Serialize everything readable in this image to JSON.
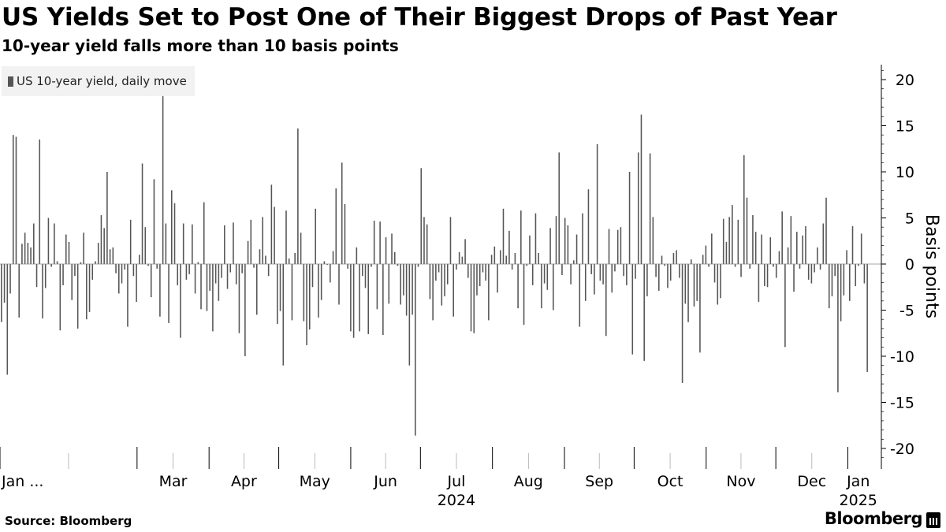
{
  "header": {
    "title": "US Yields Set to Post One of Their Biggest Drops of Past Year",
    "subtitle": "10-year yield falls more than 10 basis points"
  },
  "footer": {
    "source": "Source: Bloomberg",
    "brand": "Bloomberg"
  },
  "chart_data": {
    "type": "bar",
    "legend": {
      "label": "US 10-year yield, daily move",
      "placement": "top-left"
    },
    "ylabel": "Basis points",
    "ylim": [
      -22,
      22
    ],
    "yticks": [
      20,
      15,
      10,
      5,
      0,
      -5,
      -10,
      -15,
      -20
    ],
    "ytick_labels": [
      "20",
      "15",
      "10",
      "5",
      "0",
      "-5",
      "-10",
      "-15",
      "-20"
    ],
    "y_axis_side": "right",
    "grid": false,
    "color": "#555555",
    "xlim": [
      "2024-01-02",
      "2025-01-10"
    ],
    "x_tick_labels": [
      {
        "date": "2024-01-02",
        "label": "Jan ..."
      },
      {
        "date": "2024-03-01",
        "label": "Mar"
      },
      {
        "date": "2024-04-01",
        "label": "Apr"
      },
      {
        "date": "2024-05-01",
        "label": "May"
      },
      {
        "date": "2024-06-01",
        "label": "Jun"
      },
      {
        "date": "2024-07-01",
        "label": "Jul"
      },
      {
        "date": "2024-08-01",
        "label": "Aug"
      },
      {
        "date": "2024-09-01",
        "label": "Sep"
      },
      {
        "date": "2024-10-01",
        "label": "Oct"
      },
      {
        "date": "2024-11-01",
        "label": "Nov"
      },
      {
        "date": "2024-12-01",
        "label": "Dec"
      },
      {
        "date": "2025-01-01",
        "label": "Jan"
      }
    ],
    "x_year_labels": [
      {
        "date": "2024-07-01",
        "label": "2024"
      },
      {
        "date": "2025-01-01",
        "label": "2025"
      }
    ],
    "series": [
      {
        "values": [
          -6.3,
          -4.2,
          -12,
          -3.2,
          14,
          13.8,
          -5.8,
          2.2,
          3.4,
          2.3,
          1.8,
          4.4,
          -2.5,
          13.5,
          -5.9,
          -2.6,
          5,
          -0.3,
          4.4,
          0.3,
          -7.2,
          -2.3,
          3.2,
          2.4,
          -3.9,
          -1.3,
          -7,
          0.2,
          3.4,
          -6,
          -5.2,
          -1.7,
          0.3,
          2.3,
          5.3,
          3.9,
          10,
          1.6,
          1.8,
          -1,
          -3.2,
          -2.1,
          -0.6,
          -6.8,
          4.8,
          -1.3,
          -4.1,
          1,
          10.9,
          4,
          -0.2,
          -3.6,
          9.2,
          -0.5,
          -5.7,
          18.2,
          4.4,
          -6.4,
          8,
          6.6,
          -2.3,
          -8,
          4.4,
          -1.7,
          -1.1,
          4.3,
          -3.2,
          0.2,
          -4.9,
          6.7,
          -5.1,
          -2.9,
          -7.3,
          -2.1,
          -4,
          -1.5,
          4.2,
          -2.7,
          -0.9,
          4.5,
          -2.2,
          -7.5,
          -1,
          -10,
          2.5,
          4.8,
          -0.4,
          -5.5,
          1.6,
          5.1,
          0.9,
          -1.3,
          8.6,
          6.2,
          -6.5,
          -5.1,
          -11,
          5.8,
          0.6,
          -6.1,
          1.2,
          14.7,
          3.4,
          -6.2,
          -8.8,
          -7.1,
          -2.5,
          6,
          -5.8,
          -3.9,
          0.3,
          -0.1,
          -2,
          1.4,
          8.2,
          -4.4,
          11,
          6.5,
          -0.5,
          -7.3,
          -8,
          1.8,
          -7.3,
          -1.3,
          -2.6,
          -7.6,
          -0.3,
          4.7,
          -4.9,
          4.6,
          -7.7,
          2.9,
          -4.3,
          3.3,
          1.3,
          -0.2,
          -4.4,
          -3.4,
          -5.6,
          -11,
          -5.5,
          -18.6,
          -0.3,
          10.4,
          5.1,
          4.3,
          -3.8,
          -6.1,
          -1.8,
          -0.9,
          -4.5,
          -3.5,
          -2.2,
          5.1,
          -5.7,
          -0.6,
          1.3,
          0.8,
          2.7,
          -1.5,
          -7.3,
          -7.5,
          -3.4,
          -2.4,
          -0.9,
          -1.8,
          -6.1,
          1,
          1.9,
          -3.1,
          1.5,
          6,
          0.9,
          3.6,
          -0.6,
          1.2,
          -4.8,
          5.8,
          -6.6,
          -0.2,
          3.1,
          -2.3,
          5.5,
          1.2,
          -4.8,
          -2.1,
          -2.8,
          3.9,
          -5,
          5.2,
          12.1,
          -1.2,
          5,
          4.2,
          -2.2,
          0.4,
          3.2,
          -6.8,
          5.5,
          -4,
          8.1,
          -1.1,
          -3.3,
          13,
          -1.8,
          -2.2,
          -7.8,
          3.8,
          -3.1,
          -0.8,
          3.7,
          4,
          -1.3,
          -2.3,
          10,
          -9.8,
          -1.6,
          12.1,
          16.2,
          -10.5,
          -3.5,
          12,
          5.1,
          -1.4,
          -2.9,
          0.9,
          -0.2,
          -2.6,
          -1.8,
          1.2,
          1.5,
          -1.5,
          -12.9,
          -4.3,
          -6.3,
          0.5,
          -4.6,
          -4,
          -9.6,
          1,
          2,
          -0.3,
          3.3,
          -2,
          -4.4,
          -3.7,
          4.9,
          2.4,
          5.1,
          6.4,
          -0.3,
          4.8,
          -1.4,
          11.8,
          7.2,
          -0.5,
          5.3,
          3.5,
          -4.1,
          3.2,
          -2.4,
          -2.5,
          2.9,
          -0.3,
          -1.5,
          1.4,
          5.7,
          -9,
          1.8,
          5.2,
          -3,
          3.5,
          -0.5,
          3.1,
          4.1,
          -1.7,
          -2.1,
          -0.9,
          1.8,
          -0.6,
          4.4,
          7.2,
          -4.8,
          -3.5,
          -1.3,
          -13.9,
          -6.2,
          -3.4,
          1.5,
          -4,
          4.1,
          -2.4,
          -0.2,
          3.3,
          -2.1,
          -11.7
        ]
      }
    ]
  }
}
